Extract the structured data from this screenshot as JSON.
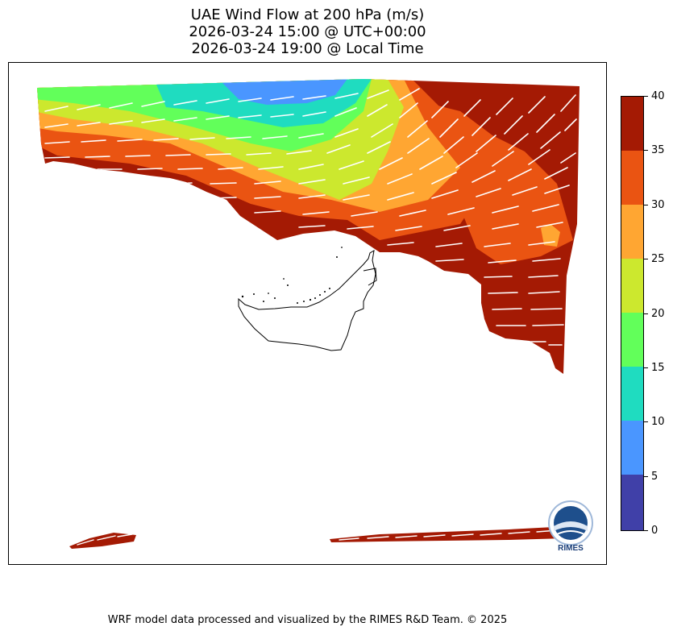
{
  "title": {
    "line1": "UAE Wind Flow at 200 hPa (m/s)",
    "line2": "2026-03-24 15:00 @ UTC+00:00",
    "line3": "2026-03-24 19:00 @ Local Time"
  },
  "colorbar": {
    "ticks": [
      "0",
      "5",
      "10",
      "15",
      "20",
      "25",
      "30",
      "35",
      "40"
    ],
    "bins": [
      {
        "range": "0-5",
        "color": "#4040a8"
      },
      {
        "range": "5-10",
        "color": "#4a96ff"
      },
      {
        "range": "10-15",
        "color": "#1fdcc0"
      },
      {
        "range": "15-20",
        "color": "#62ff5a"
      },
      {
        "range": "20-25",
        "color": "#cce82e"
      },
      {
        "range": "25-30",
        "color": "#ffa632"
      },
      {
        "range": "30-35",
        "color": "#ea5412"
      },
      {
        "range": "35-40",
        "color": "#a41a04"
      }
    ]
  },
  "map": {
    "variable": "wind speed at 200 hPa",
    "units": "m/s",
    "wind_direction": "westerly to south-westerly",
    "region_outlined": "UAE boundary"
  },
  "logo": {
    "text": "RIMES"
  },
  "footer": "WRF model data processed and visualized by the RIMES R&D Team. © 2025"
}
